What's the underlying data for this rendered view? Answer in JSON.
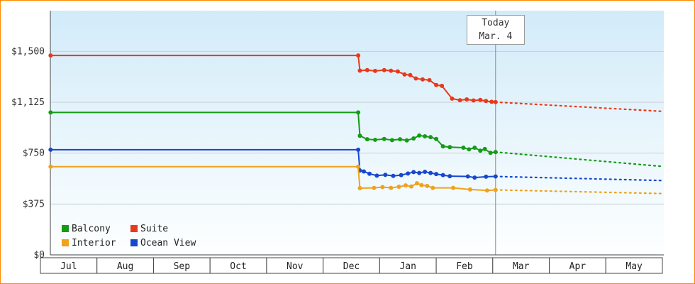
{
  "colors": {
    "frame_border": "#ff8a00",
    "plot_bg_top": "#d2ebf9",
    "plot_bg_bottom": "#fdffff",
    "grid": "#c8ced2",
    "axis": "#444444",
    "today_line": "#888888",
    "month_box_border": "#444444",
    "text": "#333333"
  },
  "chart_data": {
    "type": "line",
    "x_axis": {
      "months": [
        "Jul",
        "Aug",
        "Sep",
        "Oct",
        "Nov",
        "Dec",
        "Jan",
        "Feb",
        "Mar",
        "Apr",
        "May"
      ]
    },
    "y_axis": {
      "max": 1800,
      "ticks": [
        {
          "value": 0,
          "label": "$0"
        },
        {
          "value": 375,
          "label": "$375"
        },
        {
          "value": 750,
          "label": "$750"
        },
        {
          "value": 1125,
          "label": "$1,125"
        },
        {
          "value": 1500,
          "label": "$1,500"
        }
      ]
    },
    "today": {
      "line1": "Today",
      "line2": "Mar. 4",
      "x": 8.05
    },
    "series": [
      {
        "name": "Suite",
        "color": "#e8391a",
        "history": [
          [
            0.18,
            1470
          ],
          [
            5.62,
            1470
          ],
          [
            5.65,
            1358
          ],
          [
            5.78,
            1362
          ],
          [
            5.92,
            1356
          ],
          [
            6.08,
            1362
          ],
          [
            6.2,
            1357
          ],
          [
            6.32,
            1352
          ],
          [
            6.44,
            1330
          ],
          [
            6.54,
            1325
          ],
          [
            6.64,
            1300
          ],
          [
            6.76,
            1293
          ],
          [
            6.88,
            1288
          ],
          [
            7.0,
            1252
          ],
          [
            7.1,
            1246
          ],
          [
            7.28,
            1152
          ],
          [
            7.42,
            1140
          ],
          [
            7.54,
            1146
          ],
          [
            7.66,
            1138
          ],
          [
            7.78,
            1142
          ],
          [
            7.88,
            1134
          ],
          [
            7.98,
            1128
          ],
          [
            8.05,
            1126
          ]
        ],
        "projection": [
          [
            8.05,
            1126
          ],
          [
            11,
            1058
          ]
        ]
      },
      {
        "name": "Balcony",
        "color": "#159b15",
        "history": [
          [
            0.18,
            1050
          ],
          [
            5.62,
            1050
          ],
          [
            5.65,
            878
          ],
          [
            5.78,
            852
          ],
          [
            5.92,
            848
          ],
          [
            6.08,
            854
          ],
          [
            6.22,
            846
          ],
          [
            6.36,
            852
          ],
          [
            6.48,
            844
          ],
          [
            6.6,
            858
          ],
          [
            6.7,
            880
          ],
          [
            6.8,
            874
          ],
          [
            6.9,
            868
          ],
          [
            7.0,
            854
          ],
          [
            7.12,
            800
          ],
          [
            7.24,
            794
          ],
          [
            7.48,
            790
          ],
          [
            7.58,
            778
          ],
          [
            7.68,
            790
          ],
          [
            7.78,
            768
          ],
          [
            7.86,
            780
          ],
          [
            7.96,
            752
          ],
          [
            8.05,
            758
          ]
        ],
        "projection": [
          [
            8.05,
            758
          ],
          [
            11,
            652
          ]
        ]
      },
      {
        "name": "Ocean View",
        "color": "#1747cf",
        "history": [
          [
            0.18,
            775
          ],
          [
            5.62,
            775
          ],
          [
            5.65,
            622
          ],
          [
            5.72,
            615
          ],
          [
            5.82,
            598
          ],
          [
            5.95,
            584
          ],
          [
            6.1,
            590
          ],
          [
            6.24,
            582
          ],
          [
            6.38,
            588
          ],
          [
            6.5,
            600
          ],
          [
            6.6,
            610
          ],
          [
            6.7,
            604
          ],
          [
            6.8,
            612
          ],
          [
            6.9,
            604
          ],
          [
            7.0,
            596
          ],
          [
            7.12,
            588
          ],
          [
            7.24,
            580
          ],
          [
            7.56,
            578
          ],
          [
            7.68,
            570
          ],
          [
            7.88,
            576
          ],
          [
            8.05,
            578
          ]
        ],
        "projection": [
          [
            8.05,
            578
          ],
          [
            11,
            548
          ]
        ]
      },
      {
        "name": "Interior",
        "color": "#f0a21d",
        "history": [
          [
            0.18,
            650
          ],
          [
            5.62,
            650
          ],
          [
            5.65,
            492
          ],
          [
            5.9,
            494
          ],
          [
            6.05,
            500
          ],
          [
            6.2,
            494
          ],
          [
            6.34,
            502
          ],
          [
            6.46,
            512
          ],
          [
            6.56,
            504
          ],
          [
            6.66,
            528
          ],
          [
            6.74,
            514
          ],
          [
            6.84,
            508
          ],
          [
            6.94,
            494
          ],
          [
            7.3,
            494
          ],
          [
            7.6,
            482
          ],
          [
            7.9,
            475
          ],
          [
            8.05,
            479
          ]
        ],
        "projection": [
          [
            8.05,
            479
          ],
          [
            11,
            452
          ]
        ]
      }
    ],
    "legend": [
      {
        "label": "Balcony",
        "color": "#159b15"
      },
      {
        "label": "Suite",
        "color": "#e8391a"
      },
      {
        "label": "Interior",
        "color": "#f0a21d"
      },
      {
        "label": "Ocean View",
        "color": "#1747cf"
      }
    ]
  }
}
